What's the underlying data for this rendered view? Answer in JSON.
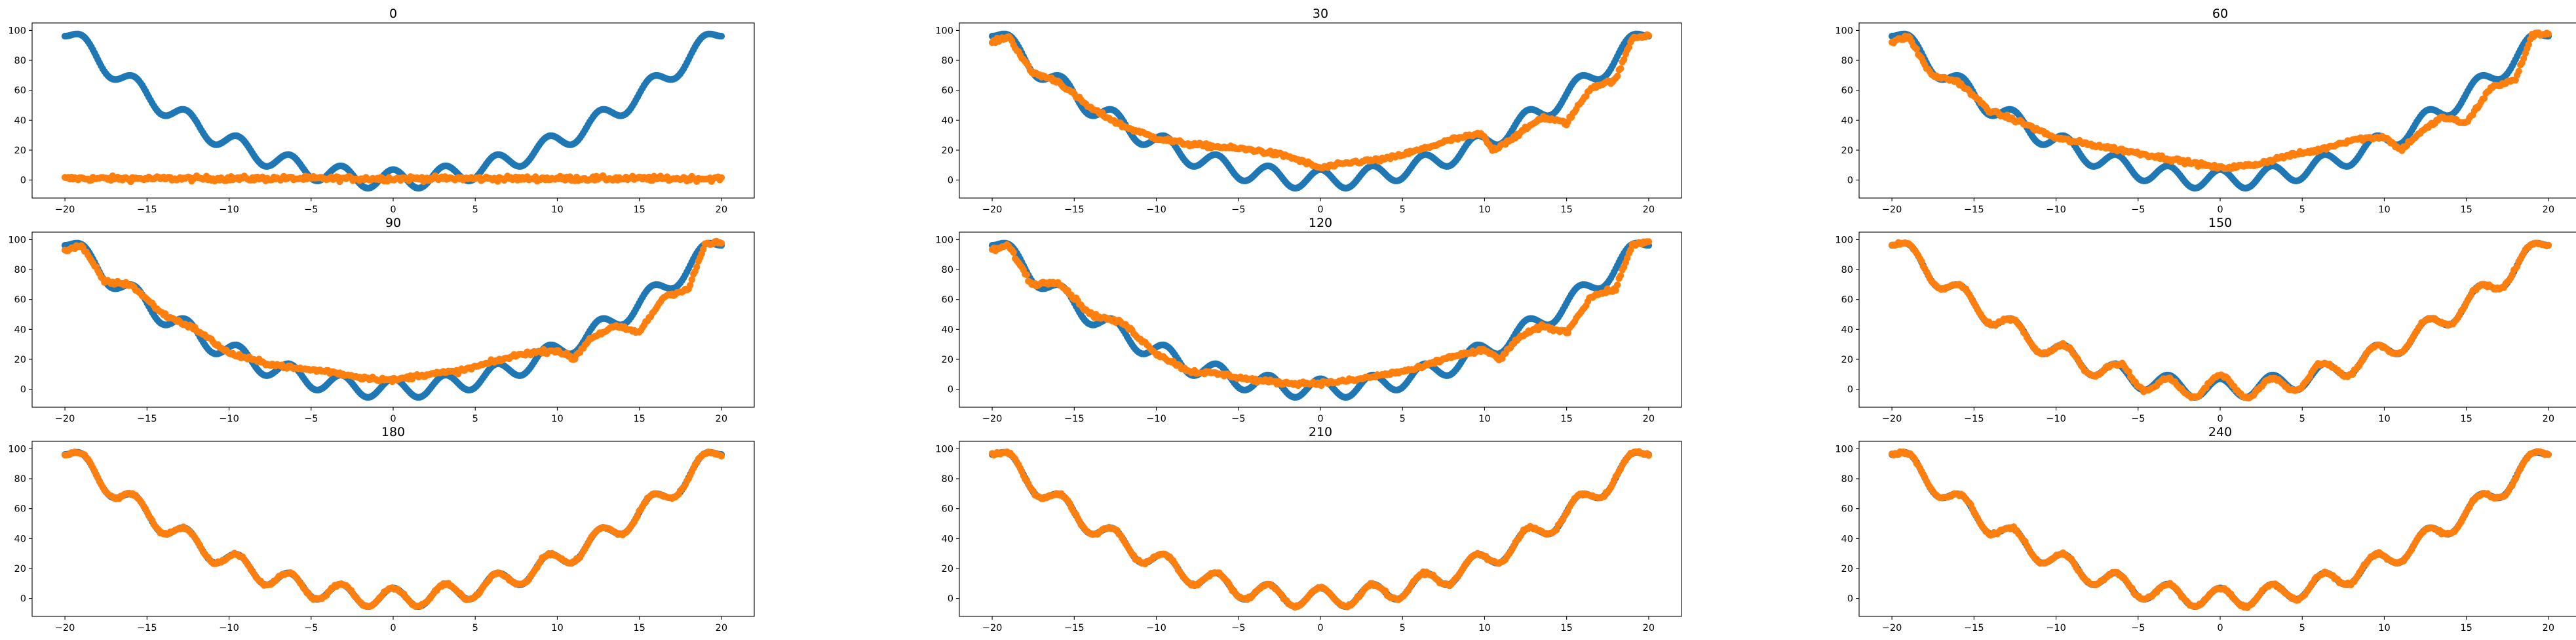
{
  "figure": {
    "colors": {
      "target": "#1f77b4",
      "prediction": "#ff7f0e"
    },
    "xlim": [
      -22,
      22
    ],
    "ylim": [
      -12,
      105
    ],
    "xticks": [
      -20,
      -15,
      -10,
      -5,
      0,
      5,
      10,
      15,
      20
    ],
    "yticks": [
      0,
      20,
      40,
      60,
      80,
      100
    ]
  },
  "chart_data": [
    {
      "type": "scatter",
      "title": "0",
      "prediction": "noise_near_zero"
    },
    {
      "type": "scatter",
      "title": "30",
      "prediction": "partial_fit",
      "prediction_anchors": [
        [
          -20,
          92
        ],
        [
          -19,
          96
        ],
        [
          -17.6,
          72
        ],
        [
          -16,
          66
        ],
        [
          -14,
          48
        ],
        [
          -12,
          36
        ],
        [
          -10,
          28
        ],
        [
          -8,
          24
        ],
        [
          -6,
          22
        ],
        [
          -4,
          20
        ],
        [
          -2,
          16
        ],
        [
          0,
          8
        ],
        [
          2,
          12
        ],
        [
          4,
          14
        ],
        [
          6,
          20
        ],
        [
          8,
          27
        ],
        [
          9.8,
          31
        ],
        [
          10.5,
          20
        ],
        [
          12,
          30
        ],
        [
          13.5,
          42
        ],
        [
          15,
          38
        ],
        [
          16.5,
          62
        ],
        [
          18,
          67
        ],
        [
          19,
          95
        ],
        [
          20,
          97
        ]
      ]
    },
    {
      "type": "scatter",
      "title": "60",
      "prediction": "partial_fit",
      "prediction_anchors": [
        [
          -20,
          92
        ],
        [
          -19,
          96
        ],
        [
          -17.6,
          70
        ],
        [
          -16,
          66
        ],
        [
          -14,
          46
        ],
        [
          -12,
          38
        ],
        [
          -10,
          28
        ],
        [
          -8,
          24
        ],
        [
          -6,
          20
        ],
        [
          -4,
          16
        ],
        [
          -2,
          12
        ],
        [
          0,
          8
        ],
        [
          2,
          10
        ],
        [
          4,
          16
        ],
        [
          6,
          20
        ],
        [
          8,
          27
        ],
        [
          10,
          29
        ],
        [
          11,
          20
        ],
        [
          12,
          30
        ],
        [
          13.5,
          42
        ],
        [
          15,
          38
        ],
        [
          16.5,
          62
        ],
        [
          18,
          67
        ],
        [
          19,
          97
        ],
        [
          20,
          98
        ]
      ]
    },
    {
      "type": "scatter",
      "title": "90",
      "prediction": "partial_fit",
      "prediction_anchors": [
        [
          -20,
          93
        ],
        [
          -19,
          96
        ],
        [
          -17.6,
          72
        ],
        [
          -16,
          70
        ],
        [
          -14,
          50
        ],
        [
          -12,
          40
        ],
        [
          -10,
          24
        ],
        [
          -8,
          18
        ],
        [
          -6,
          14
        ],
        [
          -4,
          12
        ],
        [
          -2,
          8
        ],
        [
          0,
          6
        ],
        [
          2,
          10
        ],
        [
          4,
          12
        ],
        [
          6,
          18
        ],
        [
          8,
          24
        ],
        [
          10,
          26
        ],
        [
          11,
          20
        ],
        [
          12,
          34
        ],
        [
          13.5,
          42
        ],
        [
          15,
          38
        ],
        [
          16.5,
          62
        ],
        [
          18,
          67
        ],
        [
          19,
          97
        ],
        [
          20,
          98
        ]
      ]
    },
    {
      "type": "scatter",
      "title": "120",
      "prediction": "partial_fit",
      "prediction_anchors": [
        [
          -20,
          93
        ],
        [
          -19,
          96
        ],
        [
          -17.6,
          70
        ],
        [
          -16,
          72
        ],
        [
          -14,
          50
        ],
        [
          -12,
          44
        ],
        [
          -10,
          24
        ],
        [
          -8,
          12
        ],
        [
          -6,
          10
        ],
        [
          -4,
          6
        ],
        [
          -2,
          4
        ],
        [
          0,
          4
        ],
        [
          2,
          6
        ],
        [
          4,
          10
        ],
        [
          6,
          14
        ],
        [
          8,
          22
        ],
        [
          10,
          26
        ],
        [
          11,
          20
        ],
        [
          12,
          34
        ],
        [
          13.5,
          42
        ],
        [
          15,
          38
        ],
        [
          16.5,
          62
        ],
        [
          18,
          67
        ],
        [
          19,
          97
        ],
        [
          20,
          98
        ]
      ]
    },
    {
      "type": "scatter",
      "title": "150",
      "prediction": "near_fit"
    },
    {
      "type": "scatter",
      "title": "180",
      "prediction": "fit"
    },
    {
      "type": "scatter",
      "title": "210",
      "prediction": "fit"
    },
    {
      "type": "scatter",
      "title": "240",
      "prediction": "fit"
    }
  ]
}
